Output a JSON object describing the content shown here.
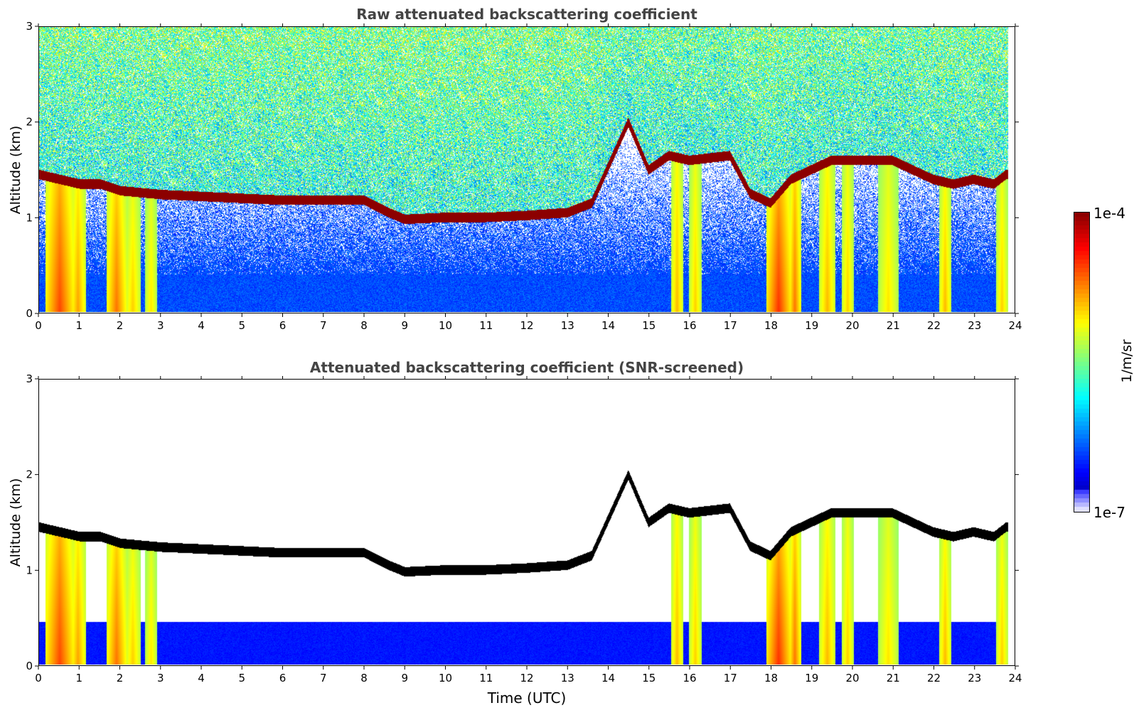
{
  "chart_data": [
    {
      "type": "heatmap",
      "title": "Raw attenuated backscattering coefficient",
      "xlabel": "",
      "ylabel": "Altitude (km)",
      "xlim": [
        0,
        24
      ],
      "ylim": [
        0,
        3
      ],
      "xticks": [
        0,
        1,
        2,
        3,
        4,
        5,
        6,
        7,
        8,
        9,
        10,
        11,
        12,
        13,
        14,
        15,
        16,
        17,
        18,
        19,
        20,
        21,
        22,
        23,
        24
      ],
      "yticks": [
        0,
        1,
        2,
        3
      ],
      "cloud_base_km": {
        "time_utc": [
          0,
          0.5,
          1,
          1.5,
          2,
          3,
          4,
          5,
          6,
          7,
          8,
          8.6,
          9,
          10,
          11,
          12,
          13,
          13.6,
          14.5,
          15,
          15.5,
          16,
          17,
          17.5,
          18,
          18.5,
          19,
          19.5,
          20,
          21,
          22,
          22.5,
          23,
          23.5,
          23.8
        ],
        "altitude": [
          1.45,
          1.4,
          1.35,
          1.35,
          1.28,
          1.24,
          1.22,
          1.2,
          1.18,
          1.18,
          1.18,
          1.05,
          0.98,
          1.0,
          1.0,
          1.02,
          1.05,
          1.15,
          2.0,
          1.5,
          1.65,
          1.6,
          1.65,
          1.25,
          1.15,
          1.4,
          1.5,
          1.6,
          1.6,
          1.6,
          1.4,
          1.35,
          1.4,
          1.35,
          1.45
        ]
      },
      "notes": "log-scaled colormap"
    },
    {
      "type": "heatmap",
      "title": "Attenuated backscattering coefficient (SNR-screened)",
      "xlabel": "Time (UTC)",
      "ylabel": "Altitude (km)",
      "xlim": [
        0,
        24
      ],
      "ylim": [
        0,
        3
      ],
      "xticks": [
        0,
        1,
        2,
        3,
        4,
        5,
        6,
        7,
        8,
        9,
        10,
        11,
        12,
        13,
        14,
        15,
        16,
        17,
        18,
        19,
        20,
        21,
        22,
        23,
        24
      ],
      "yticks": [
        0,
        1,
        2,
        3
      ]
    }
  ],
  "colorbar": {
    "label": "1/m/sr",
    "max_label": "1e-4",
    "min_label": "1e-7",
    "min": 1e-07,
    "max": 0.0001,
    "scale": "log",
    "colormap": "jet"
  }
}
